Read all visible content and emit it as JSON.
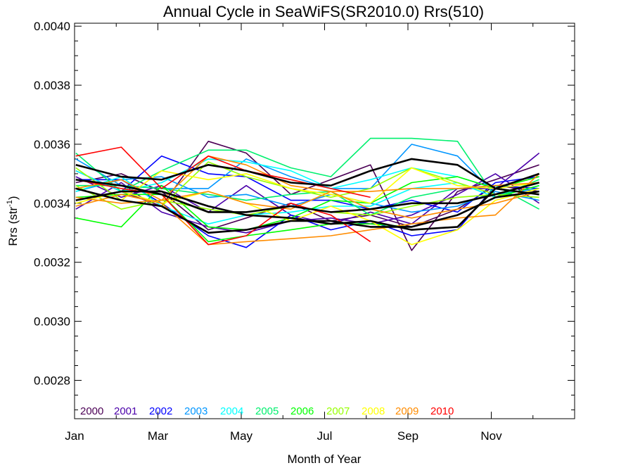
{
  "chart_data": {
    "type": "line",
    "title": "Annual Cycle in SeaWiFS(SR2010.0) Rrs(510)",
    "xlabel": "Month of Year",
    "ylabel": {
      "base": "Rrs (str",
      "sup": "-1",
      "close": ")"
    },
    "xlim": [
      0,
      12
    ],
    "ylim": [
      0.00267,
      0.00401
    ],
    "x_ticks": [
      {
        "label": "Jan",
        "value": 0
      },
      {
        "label": "Mar",
        "value": 2
      },
      {
        "label": "May",
        "value": 4
      },
      {
        "label": "Jul",
        "value": 6
      },
      {
        "label": "Sep",
        "value": 8
      },
      {
        "label": "Nov",
        "value": 10
      }
    ],
    "y_ticks": [
      {
        "label": "0.0028",
        "value": 0.0028
      },
      {
        "label": "0.0030",
        "value": 0.003
      },
      {
        "label": "0.0032",
        "value": 0.0032
      },
      {
        "label": "0.0034",
        "value": 0.0034
      },
      {
        "label": "0.0036",
        "value": 0.0036
      },
      {
        "label": "0.0038",
        "value": 0.0038
      },
      {
        "label": "0.0040",
        "value": 0.004
      }
    ],
    "x": [
      0.03,
      1.12,
      2.09,
      3.21,
      4.12,
      5.19,
      6.15,
      7.1,
      8.09,
      9.19,
      10.1,
      11.15
    ],
    "series": [
      {
        "name": "2000",
        "color": "#4b0055",
        "lines": [
          [
            0.00351,
            0.00344,
            0.00339,
            0.00361,
            0.00357,
            0.00343,
            0.00348,
            0.00353,
            0.00324,
            0.00344,
            0.00348,
            0.00353
          ],
          [
            0.00347,
            0.0035,
            0.00344,
            0.00331,
            0.00335,
            0.0034,
            0.00334,
            0.00336,
            0.00332,
            0.00338,
            0.00346,
            0.00344
          ]
        ]
      },
      {
        "name": "2001",
        "color": "#4b00aa",
        "lines": [
          [
            0.00349,
            0.00342,
            0.00346,
            0.00337,
            0.00346,
            0.00336,
            0.00333,
            0.00337,
            0.00333,
            0.00345,
            0.00345,
            0.00357
          ],
          [
            0.00338,
            0.00347,
            0.00337,
            0.00332,
            0.0033,
            0.00334,
            0.00335,
            0.00333,
            0.00336,
            0.00343,
            0.0035,
            0.0034
          ]
        ]
      },
      {
        "name": "2002",
        "color": "#0000ff",
        "lines": [
          [
            0.00341,
            0.00344,
            0.00356,
            0.0035,
            0.00349,
            0.00341,
            0.00341,
            0.00338,
            0.00341,
            0.00337,
            0.00347,
            0.00349
          ],
          [
            0.00348,
            0.00348,
            0.0034,
            0.00329,
            0.00325,
            0.00336,
            0.00331,
            0.00334,
            0.00329,
            0.00331,
            0.00346,
            0.00345
          ]
        ]
      },
      {
        "name": "2003",
        "color": "#0096ff",
        "lines": [
          [
            0.00355,
            0.00346,
            0.00345,
            0.00345,
            0.00355,
            0.00349,
            0.00345,
            0.00345,
            0.0036,
            0.00356,
            0.00343,
            0.00345
          ],
          [
            0.00344,
            0.00348,
            0.00349,
            0.00342,
            0.00343,
            0.00339,
            0.00343,
            0.0034,
            0.00337,
            0.00339,
            0.00344,
            0.00341
          ]
        ]
      },
      {
        "name": "2004",
        "color": "#00ffff",
        "lines": [
          [
            0.00351,
            0.00344,
            0.00347,
            0.00355,
            0.00354,
            0.00351,
            0.00345,
            0.00348,
            0.00352,
            0.00349,
            0.00345,
            0.0035
          ],
          [
            0.00344,
            0.00349,
            0.00339,
            0.00333,
            0.00336,
            0.00337,
            0.00339,
            0.00339,
            0.00345,
            0.00347,
            0.00342,
            0.00346
          ]
        ]
      },
      {
        "name": "2005",
        "color": "#00f06e",
        "lines": [
          [
            0.00357,
            0.00344,
            0.00351,
            0.00358,
            0.00358,
            0.00352,
            0.00349,
            0.00362,
            0.00362,
            0.00361,
            0.00342,
            0.00348
          ],
          [
            0.00346,
            0.00346,
            0.00345,
            0.00343,
            0.00341,
            0.00343,
            0.00344,
            0.00336,
            0.00342,
            0.00345,
            0.00346,
            0.00338
          ]
        ]
      },
      {
        "name": "2006",
        "color": "#00ff00",
        "lines": [
          [
            0.00335,
            0.00332,
            0.00346,
            0.00332,
            0.00331,
            0.00335,
            0.00341,
            0.0034,
            0.00347,
            0.00349,
            0.00345,
            0.00349
          ],
          [
            0.00342,
            0.00343,
            0.00343,
            0.00327,
            0.00329,
            0.00331,
            0.00333,
            0.00333,
            0.00332,
            0.00336,
            0.00342,
            0.00346
          ]
        ]
      },
      {
        "name": "2007",
        "color": "#96ff00",
        "lines": [
          [
            0.00352,
            0.00341,
            0.00339,
            0.00354,
            0.00349,
            0.00345,
            0.00342,
            0.00345,
            0.00352,
            0.00347,
            0.00343,
            0.00347
          ],
          [
            0.00346,
            0.00338,
            0.00341,
            0.00338,
            0.00336,
            0.00339,
            0.00337,
            0.00336,
            0.00339,
            0.00342,
            0.00343,
            0.00342
          ]
        ]
      },
      {
        "name": "2008",
        "color": "#ffff00",
        "lines": [
          [
            0.0034,
            0.00344,
            0.0034,
            0.00344,
            0.0034,
            0.00334,
            0.00339,
            0.00334,
            0.00326,
            0.00331,
            0.00341,
            0.00345
          ],
          [
            0.00345,
            0.00341,
            0.00351,
            0.00348,
            0.0035,
            0.00345,
            0.00343,
            0.0034,
            0.00352,
            0.00346,
            0.00345,
            0.00347
          ]
        ]
      },
      {
        "name": "2009",
        "color": "#ff8c00",
        "lines": [
          [
            0.00339,
            0.00343,
            0.0034,
            0.00326,
            0.00327,
            0.00328,
            0.00329,
            0.00331,
            0.00333,
            0.00335,
            0.00336,
            0.0035
          ],
          [
            0.00342,
            0.0034,
            0.00341,
            0.00344,
            0.0034,
            0.00338,
            0.00344,
            0.00344,
            0.00345,
            0.00345,
            0.00346,
            0.00347
          ],
          [
            0.00345,
            0.00348,
            0.00341,
            0.00356,
            0.00353,
            0.00346,
            0.00344,
            0.00338,
            0.00335,
            0.00338,
            0.0034,
            0.00344
          ]
        ]
      },
      {
        "name": "2010",
        "color": "#ff0000",
        "lines": [
          [
            0.00356,
            0.00359,
            0.00345,
            0.00356,
            0.00351,
            0.00348,
            0.00345,
            0.00342
          ],
          [
            0.00348,
            0.00345,
            0.00343,
            0.00326,
            0.00329,
            0.0034,
            0.00336,
            0.00327
          ]
        ]
      }
    ],
    "mean_series": {
      "color": "#000000",
      "lines": [
        [
          0.00353,
          0.00349,
          0.00348,
          0.00353,
          0.00351,
          0.00347,
          0.00346,
          0.00351,
          0.00355,
          0.00353,
          0.00345,
          0.0035
        ],
        [
          0.00348,
          0.00346,
          0.00343,
          0.00337,
          0.00337,
          0.00339,
          0.00337,
          0.00338,
          0.0034,
          0.0034,
          0.00343,
          0.00347
        ],
        [
          0.00345,
          0.00341,
          0.00339,
          0.0033,
          0.00331,
          0.00334,
          0.00334,
          0.00332,
          0.00332,
          0.00336,
          0.00342,
          0.00344
        ],
        [
          0.00341,
          0.00344,
          0.00344,
          0.00339,
          0.00336,
          0.00335,
          0.00333,
          0.00334,
          0.00331,
          0.00332,
          0.00345,
          0.00343
        ]
      ]
    }
  }
}
